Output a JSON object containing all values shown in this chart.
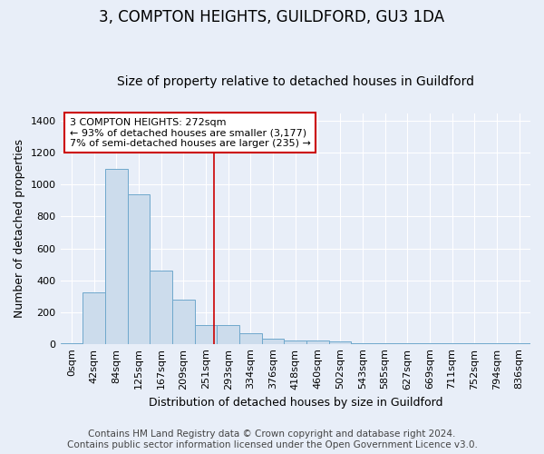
{
  "title": "3, COMPTON HEIGHTS, GUILDFORD, GU3 1DA",
  "subtitle": "Size of property relative to detached houses in Guildford",
  "xlabel": "Distribution of detached houses by size in Guildford",
  "ylabel": "Number of detached properties",
  "bar_labels": [
    "0sqm",
    "42sqm",
    "84sqm",
    "125sqm",
    "167sqm",
    "209sqm",
    "251sqm",
    "293sqm",
    "334sqm",
    "376sqm",
    "418sqm",
    "460sqm",
    "502sqm",
    "543sqm",
    "585sqm",
    "627sqm",
    "669sqm",
    "711sqm",
    "752sqm",
    "794sqm",
    "836sqm"
  ],
  "bar_values": [
    5,
    325,
    1100,
    940,
    460,
    275,
    120,
    120,
    65,
    35,
    20,
    20,
    13,
    5,
    5,
    5,
    5,
    3,
    3,
    3,
    3
  ],
  "bar_color": "#ccdcec",
  "bar_edge_color": "#6fa8cc",
  "bar_width": 1.0,
  "ylim": [
    0,
    1450
  ],
  "yticks": [
    0,
    200,
    400,
    600,
    800,
    1000,
    1200,
    1400
  ],
  "red_line_x": 6.38,
  "annotation_line1": "3 COMPTON HEIGHTS: 272sqm",
  "annotation_line2": "← 93% of detached houses are smaller (3,177)",
  "annotation_line3": "7% of semi-detached houses are larger (235) →",
  "annotation_box_color": "#ffffff",
  "annotation_border_color": "#cc0000",
  "footer_line1": "Contains HM Land Registry data © Crown copyright and database right 2024.",
  "footer_line2": "Contains public sector information licensed under the Open Government Licence v3.0.",
  "background_color": "#e8eef8",
  "plot_background_color": "#e8eef8",
  "grid_color": "#ffffff",
  "title_fontsize": 12,
  "subtitle_fontsize": 10,
  "axis_label_fontsize": 9,
  "tick_fontsize": 8,
  "footer_fontsize": 7.5,
  "annotation_fontsize": 8
}
